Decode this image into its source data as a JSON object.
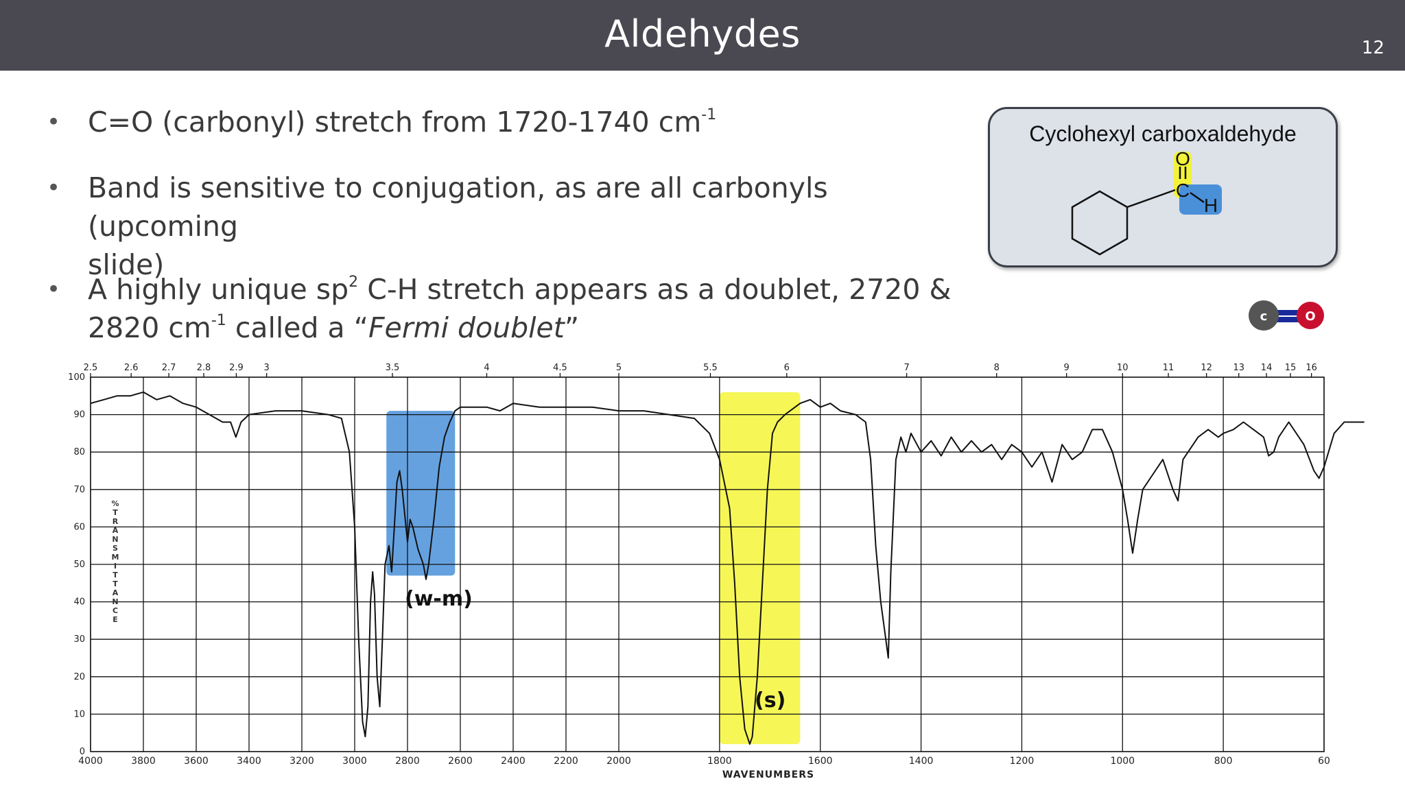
{
  "slide": {
    "title": "Aldehydes",
    "number": "12"
  },
  "bullets": [
    {
      "pre": "C=O (carbonyl) stretch from 1720-1740 cm",
      "sup": "-1",
      "post": ""
    },
    {
      "pre": "Band is sensitive to conjugation, as are all carbonyls (upcoming",
      "line2": "slide)"
    },
    {
      "pre": "A highly unique sp",
      "sup": "2",
      "post": " C-H stretch appears as a doublet, 2720 &amp;",
      "line2_pre": "2820 cm",
      "line2_sup": "-1",
      "line2_mid": " called a “",
      "line2_italic": "Fermi doublet",
      "line2_post": "”"
    }
  ],
  "structure": {
    "name": "Cyclohexyl carboxaldehyde",
    "atom_o": "O",
    "atom_c": "C",
    "atom_h": "H",
    "highlight_o_color": "#f2f23a",
    "highlight_h_color": "#4a90d9"
  },
  "co_icon": {
    "left_atom": "c",
    "right_atom": "O"
  },
  "band_labels": {
    "fermi": "(w-m)",
    "carbonyl": "(s)"
  },
  "chart_data": {
    "type": "line",
    "xlabel": "WAVENUMBERS",
    "ylabel": "% TRANSMITTANCE",
    "xlim": [
      4000,
      600
    ],
    "ylim": [
      0,
      100
    ],
    "x_ticks_bottom": [
      "4000",
      "3800",
      "3600",
      "3400",
      "3200",
      "3000",
      "2800",
      "2600",
      "2400",
      "2200",
      "2000",
      "1800",
      "1600",
      "1400",
      "1200",
      "1000",
      "800",
      "60"
    ],
    "y_ticks": [
      "100",
      "90",
      "80",
      "70",
      "60",
      "50",
      "40",
      "30",
      "20",
      "10",
      "0"
    ],
    "micron_ticks_top": [
      "2.5",
      "2.6",
      "2.7",
      "2.8",
      "2.9",
      "3",
      "3.5",
      "4",
      "4.5",
      "5",
      "5.5",
      "6",
      "7",
      "8",
      "9",
      "10",
      "11",
      "12",
      "13",
      "14",
      "15",
      "16"
    ],
    "highlights": [
      {
        "from": 2880,
        "to": 2620,
        "color": "#4a90d9",
        "label": "(w-m)"
      },
      {
        "from": 1800,
        "to": 1640,
        "color": "#f5f53a",
        "label": "(s)"
      }
    ],
    "series": [
      {
        "values": [
          [
            4000,
            93
          ],
          [
            3950,
            94
          ],
          [
            3900,
            95
          ],
          [
            3850,
            95
          ],
          [
            3800,
            96
          ],
          [
            3750,
            94
          ],
          [
            3700,
            95
          ],
          [
            3650,
            93
          ],
          [
            3600,
            92
          ],
          [
            3550,
            90
          ],
          [
            3500,
            88
          ],
          [
            3470,
            88
          ],
          [
            3450,
            84
          ],
          [
            3430,
            88
          ],
          [
            3400,
            90
          ],
          [
            3300,
            91
          ],
          [
            3200,
            91
          ],
          [
            3100,
            90
          ],
          [
            3050,
            89
          ],
          [
            3020,
            80
          ],
          [
            3000,
            60
          ],
          [
            2985,
            30
          ],
          [
            2970,
            8
          ],
          [
            2960,
            4
          ],
          [
            2950,
            12
          ],
          [
            2940,
            40
          ],
          [
            2932,
            48
          ],
          [
            2925,
            42
          ],
          [
            2915,
            20
          ],
          [
            2905,
            12
          ],
          [
            2895,
            30
          ],
          [
            2885,
            50
          ],
          [
            2870,
            55
          ],
          [
            2860,
            48
          ],
          [
            2850,
            60
          ],
          [
            2840,
            72
          ],
          [
            2830,
            75
          ],
          [
            2820,
            70
          ],
          [
            2800,
            56
          ],
          [
            2790,
            62
          ],
          [
            2780,
            60
          ],
          [
            2760,
            54
          ],
          [
            2740,
            50
          ],
          [
            2730,
            46
          ],
          [
            2720,
            50
          ],
          [
            2700,
            62
          ],
          [
            2680,
            76
          ],
          [
            2660,
            84
          ],
          [
            2640,
            88
          ],
          [
            2620,
            91
          ],
          [
            2600,
            92
          ],
          [
            2500,
            92
          ],
          [
            2450,
            91
          ],
          [
            2400,
            93
          ],
          [
            2300,
            92
          ],
          [
            2200,
            92
          ],
          [
            2100,
            92
          ],
          [
            2000,
            91
          ],
          [
            1950,
            91
          ],
          [
            1900,
            90
          ],
          [
            1850,
            89
          ],
          [
            1820,
            85
          ],
          [
            1800,
            78
          ],
          [
            1780,
            65
          ],
          [
            1770,
            45
          ],
          [
            1760,
            20
          ],
          [
            1750,
            6
          ],
          [
            1740,
            2
          ],
          [
            1735,
            4
          ],
          [
            1725,
            20
          ],
          [
            1715,
            45
          ],
          [
            1705,
            70
          ],
          [
            1695,
            85
          ],
          [
            1685,
            88
          ],
          [
            1670,
            90
          ],
          [
            1640,
            93
          ],
          [
            1620,
            94
          ],
          [
            1600,
            92
          ],
          [
            1580,
            93
          ],
          [
            1560,
            91
          ],
          [
            1530,
            90
          ],
          [
            1510,
            88
          ],
          [
            1500,
            78
          ],
          [
            1490,
            55
          ],
          [
            1480,
            40
          ],
          [
            1470,
            30
          ],
          [
            1465,
            25
          ],
          [
            1460,
            48
          ],
          [
            1450,
            78
          ],
          [
            1440,
            84
          ],
          [
            1430,
            80
          ],
          [
            1420,
            85
          ],
          [
            1400,
            80
          ],
          [
            1380,
            83
          ],
          [
            1360,
            79
          ],
          [
            1340,
            84
          ],
          [
            1320,
            80
          ],
          [
            1300,
            83
          ],
          [
            1280,
            80
          ],
          [
            1260,
            82
          ],
          [
            1240,
            78
          ],
          [
            1220,
            82
          ],
          [
            1200,
            80
          ],
          [
            1180,
            76
          ],
          [
            1160,
            80
          ],
          [
            1140,
            72
          ],
          [
            1120,
            82
          ],
          [
            1100,
            78
          ],
          [
            1080,
            80
          ],
          [
            1060,
            86
          ],
          [
            1040,
            86
          ],
          [
            1020,
            80
          ],
          [
            1000,
            70
          ],
          [
            990,
            62
          ],
          [
            980,
            53
          ],
          [
            970,
            62
          ],
          [
            960,
            70
          ],
          [
            940,
            74
          ],
          [
            920,
            78
          ],
          [
            900,
            70
          ],
          [
            890,
            67
          ],
          [
            880,
            78
          ],
          [
            860,
            82
          ],
          [
            850,
            84
          ],
          [
            830,
            86
          ],
          [
            810,
            84
          ],
          [
            800,
            85
          ],
          [
            780,
            86
          ],
          [
            760,
            88
          ],
          [
            740,
            86
          ],
          [
            720,
            84
          ],
          [
            710,
            79
          ],
          [
            700,
            80
          ],
          [
            690,
            84
          ],
          [
            670,
            88
          ],
          [
            640,
            82
          ],
          [
            620,
            75
          ],
          [
            610,
            73
          ],
          [
            600,
            76
          ],
          [
            580,
            85
          ],
          [
            560,
            88
          ],
          [
            540,
            88
          ],
          [
            520,
            88
          ],
          [
            600,
            88
          ]
        ]
      }
    ]
  }
}
